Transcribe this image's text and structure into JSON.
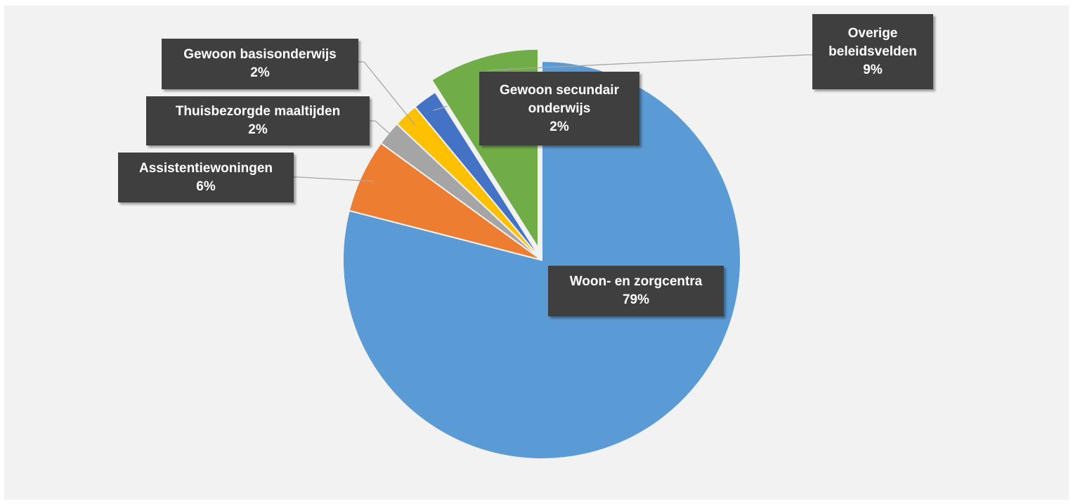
{
  "chart_data": {
    "type": "pie",
    "categories": [
      "Woon- en zorgcentra",
      "Assistentiewoningen",
      "Thuisbezorgde maaltijden",
      "Gewoon basisonderwijs",
      "Gewoon secundair onderwijs",
      "Overige beleidsvelden"
    ],
    "values": [
      79,
      6,
      2,
      2,
      2,
      9
    ],
    "value_labels": [
      "79%",
      "6%",
      "2%",
      "2%",
      "2%",
      "9%"
    ],
    "colors": [
      "#5b9bd5",
      "#ed7d31",
      "#a5a5a5",
      "#ffc000",
      "#4472c4",
      "#70ad47"
    ]
  }
}
